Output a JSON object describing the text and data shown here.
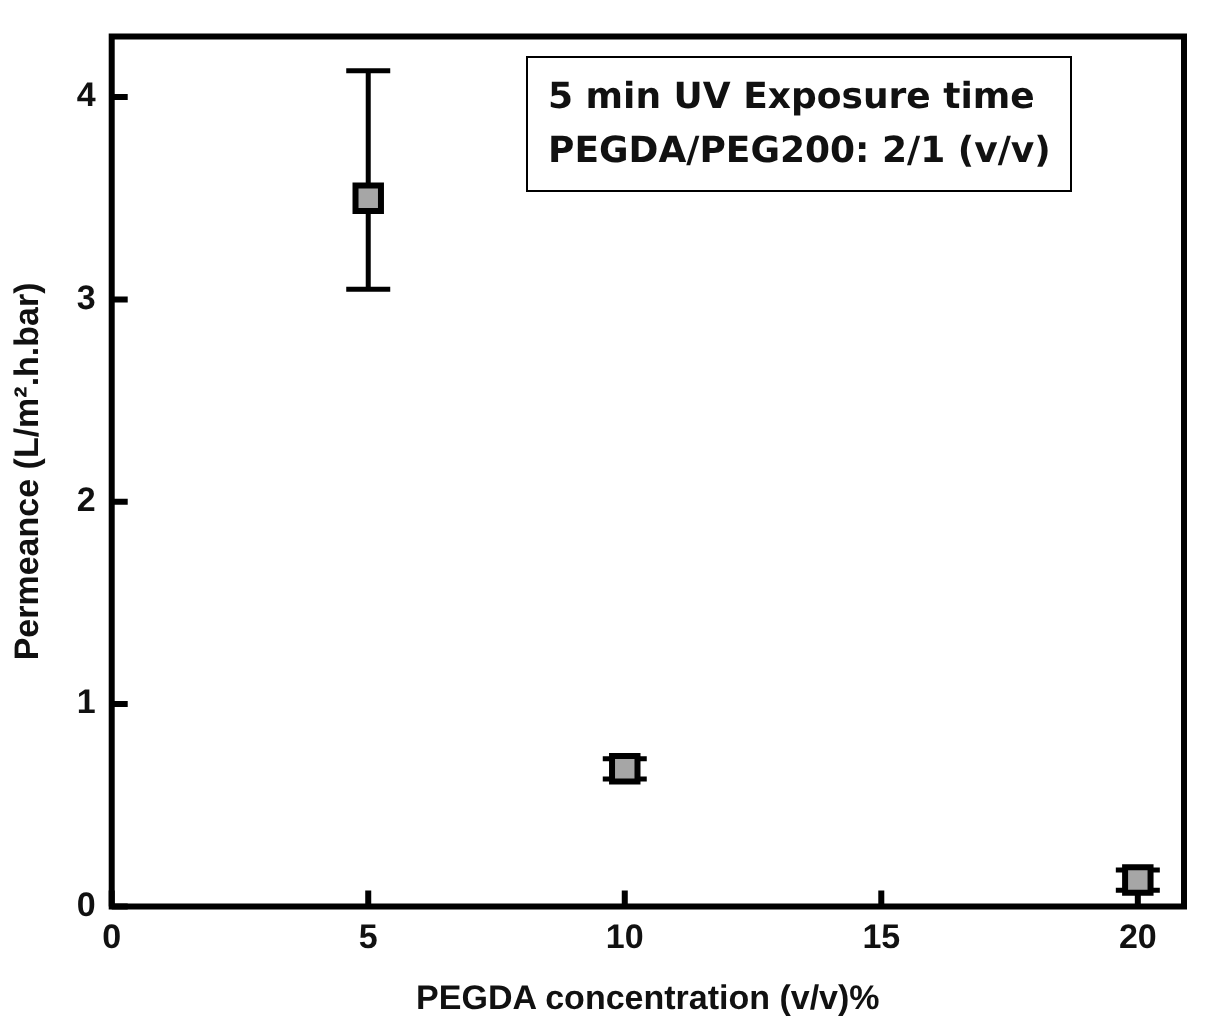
{
  "chart_data": {
    "type": "scatter",
    "xlabel": "PEGDA concentration (v/v)%",
    "ylabel": "Permeance (L/m².h.bar)",
    "annotations": [
      "5 min UV Exposure time",
      "PEGDA/PEG200: 2/1 (v/v)"
    ],
    "x": [
      5,
      10,
      20
    ],
    "series": [
      {
        "color": "#a6a6a6",
        "values": [
          3.5,
          0.68,
          0.13
        ],
        "errors": [
          [
            3.05,
            4.13
          ],
          [
            0.63,
            0.73
          ],
          [
            0.08,
            0.18
          ]
        ]
      }
    ],
    "marker": "square",
    "grid": false,
    "legend": false,
    "xlim": [
      0,
      20.9
    ],
    "xticks": [
      0,
      5,
      10,
      15,
      20
    ],
    "ylim": [
      0,
      4.3
    ],
    "yticks": [
      0,
      1,
      2,
      3,
      4
    ]
  }
}
